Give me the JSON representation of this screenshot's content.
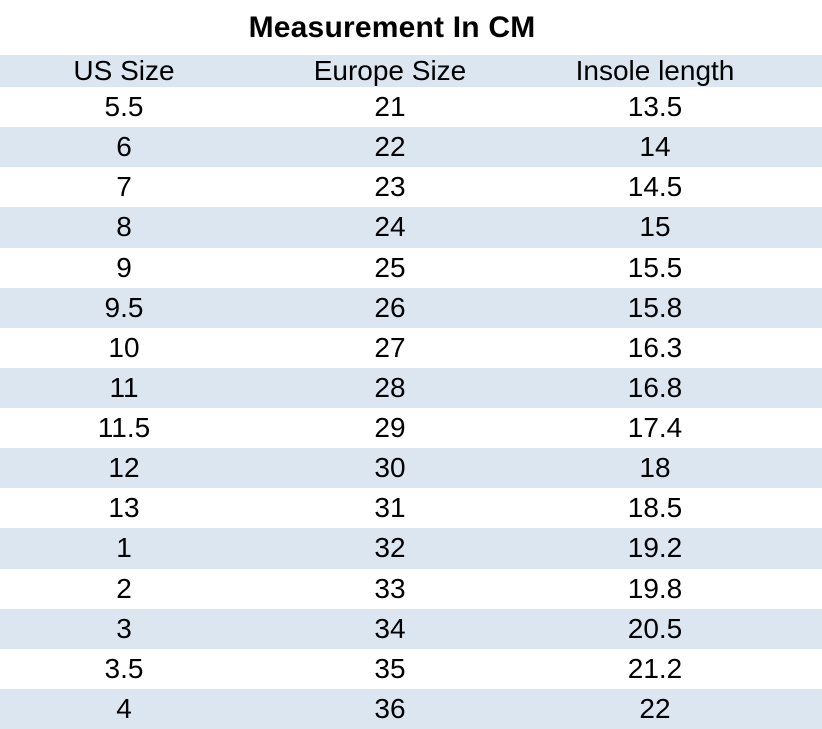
{
  "chart_data": {
    "type": "table",
    "title": "Measurement In CM",
    "columns": [
      "US Size",
      "Europe Size",
      "Insole length"
    ],
    "rows": [
      [
        "5.5",
        "21",
        "13.5"
      ],
      [
        "6",
        "22",
        "14"
      ],
      [
        "7",
        "23",
        "14.5"
      ],
      [
        "8",
        "24",
        "15"
      ],
      [
        "9",
        "25",
        "15.5"
      ],
      [
        "9.5",
        "26",
        "15.8"
      ],
      [
        "10",
        "27",
        "16.3"
      ],
      [
        "11",
        "28",
        "16.8"
      ],
      [
        "11.5",
        "29",
        "17.4"
      ],
      [
        "12",
        "30",
        "18"
      ],
      [
        "13",
        "31",
        "18.5"
      ],
      [
        "1",
        "32",
        "19.2"
      ],
      [
        "2",
        "33",
        "19.8"
      ],
      [
        "3",
        "34",
        "20.5"
      ],
      [
        "3.5",
        "35",
        "21.2"
      ],
      [
        "4",
        "36",
        "22"
      ]
    ],
    "layout_hints": {
      "striped": true,
      "header_background": "#dce6f1",
      "row_alternate_background": "#dce6f1",
      "row_base_background": "#ffffff",
      "text_color": "#000000",
      "grid": false
    }
  },
  "colors": {
    "stripe": "#dce6f1",
    "background": "#ffffff",
    "text": "#000000"
  }
}
